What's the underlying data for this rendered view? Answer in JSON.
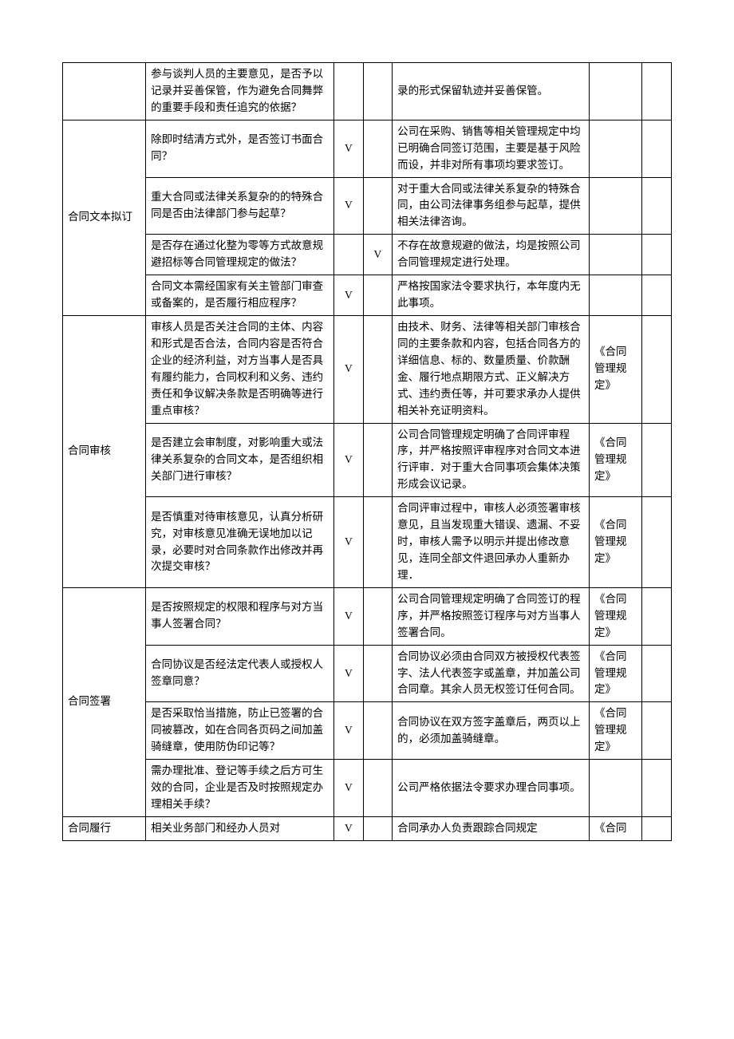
{
  "sections": {
    "s0": {
      "label": "",
      "rows": [
        {
          "q": "参与谈判人员的主要意见，是否予以记录并妥善保管，作为避免合同舞弊的重要手段和责任追究的依据？",
          "c3": "",
          "c4": "",
          "desc": "录的形式保留轨迹并妥善保管。",
          "ref": "",
          "c7": ""
        }
      ]
    },
    "s1": {
      "label": "合同文本拟订",
      "rows": [
        {
          "q": "除即时结清方式外，是否签订书面合同？",
          "c3": "V",
          "c4": "",
          "desc": "公司在采购、销售等相关管理规定中均已明确合同签订范围，主要是基于风险而设，并非对所有事项均要求签订。",
          "ref": "",
          "c7": ""
        },
        {
          "q": "重大合同或法律关系复杂的的特殊合同是否由法律部门参与起草？",
          "c3": "V",
          "c4": "",
          "desc": "对于重大合同或法律关系复杂的特殊合同，由公司法律事务组参与起草，提供相关法律咨询。",
          "ref": "",
          "c7": ""
        },
        {
          "q": "是否存在通过化整为零等方式故意规避招标等合同管理规定的做法？",
          "c3": "",
          "c4": "V",
          "desc": "不存在故意规避的做法，均是按照公司合同管理规定进行处理。",
          "ref": "",
          "c7": ""
        },
        {
          "q": "合同文本需经国家有关主管部门审查或备案的，是否履行相应程序？",
          "c3": "V",
          "c4": "",
          "desc": "严格按国家法令要求执行，本年度内无此事项。",
          "ref": "",
          "c7": ""
        }
      ]
    },
    "s2": {
      "label": "合同审核",
      "rows": [
        {
          "q": "审核人员是否关注合同的主体、内容和形式是否合法，合同内容是否符合企业的经济利益，对方当事人是否具有履约能力，合同权利和义务、违约责任和争议解决条款是否明确等进行重点审核？",
          "c3": "V",
          "c4": "",
          "desc": "由技术、财务、法律等相关部门审核合同的主要条款和内容，包括合同各方的详细信息、标的、数量质量、价款酬金、履行地点期限方式、正义解决方式、违约责任等，并可要求承办人提供相关补充证明资料。",
          "ref": "《合同管理规定》",
          "c7": ""
        },
        {
          "q": "是否建立会审制度，对影响重大或法律关系复杂的合同文本，是否组织相关部门进行审核？",
          "c3": "V",
          "c4": "",
          "desc": "公司合同管理规定明确了合同评审程序，并严格按照评审程序对合同文本进行评审．对于重大合同事项会集体决策形成会议记录。",
          "ref": "《合同管理规定》",
          "c7": ""
        },
        {
          "q": "是否慎重对待审核意见，认真分析研究，对审核意见准确无误地加以记录，必要时对合同条款作出修改并再次提交审核？",
          "c3": "V",
          "c4": "",
          "desc": "合同评审过程中，审核人必须签署审核意见，且当发现重大错误、遗漏、不妥时，审核人需予以明示并提出修改意见，连同全部文件退回承办人重新办理．",
          "ref": "《合同管理规定》",
          "c7": ""
        }
      ]
    },
    "s3": {
      "label": "合同签署",
      "rows": [
        {
          "q": "是否按照规定的权限和程序与对方当事人签署合同？",
          "c3": "V",
          "c4": "",
          "desc": "公司合同管理规定明确了合同签订的程序，并严格按照签订程序与对方当事人签署合同。",
          "ref": "《合同管理规定》",
          "c7": ""
        },
        {
          "q": "合同协议是否经法定代表人或授权人签章同意？",
          "c3": "V",
          "c4": "",
          "desc": "合同协议必须由合同双方被授权代表签字、法人代表签字或盖章，并加盖公司合同章。其余人员无权签订任何合同。",
          "ref": "《合同管理规定》",
          "c7": ""
        },
        {
          "q": "是否采取恰当措施，防止已签署的合同被篡改，如在合同各页码之间加盖骑缝章，使用防伪印记等？",
          "c3": "V",
          "c4": "",
          "desc": "合同协议在双方签字盖章后，两页以上的，必须加盖骑缝章。",
          "ref": "《合同管理规定》",
          "c7": ""
        },
        {
          "q": "需办理批准、登记等手续之后方可生效的合同，企业是否及时按照规定办理相关手续？",
          "c3": "V",
          "c4": "",
          "desc": "公司严格依据法令要求办理合同事项。",
          "ref": "",
          "c7": ""
        }
      ]
    },
    "s4": {
      "label": "合同履行",
      "rows": [
        {
          "q": "相关业务部门和经办人员对",
          "c3": "V",
          "c4": "",
          "desc": "合同承办人负责跟踪合同规定",
          "ref": "《合同",
          "c7": ""
        }
      ]
    }
  }
}
